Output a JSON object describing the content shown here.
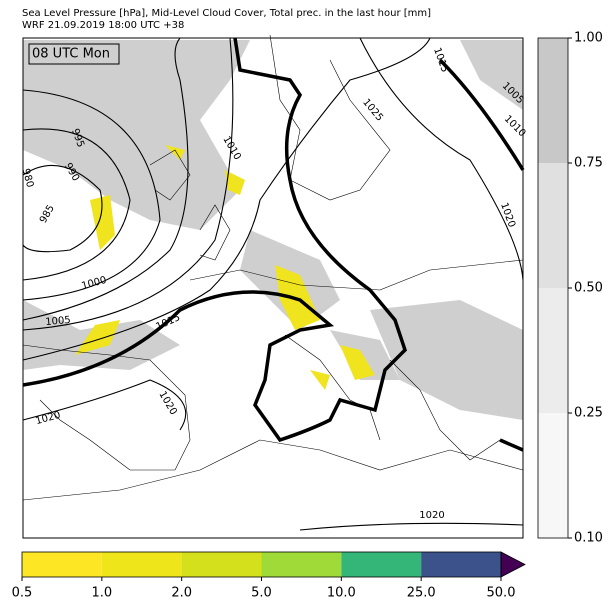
{
  "header": {
    "title": "Sea Level Pressure [hPa], Mid-Level Cloud Cover, Total prec. in the last hour [mm]",
    "subtitle": "WRF 21.09.2019 18:00 UTC +38"
  },
  "map": {
    "time_label": "08 UTC Mon",
    "contour_labels": [
      995,
      990,
      980,
      985,
      1000,
      1005,
      1015,
      1010,
      1015,
      1025,
      1005,
      1010,
      1020,
      1020,
      1020,
      1020
    ]
  },
  "cloud_colorbar": {
    "ticks": [
      {
        "value": 0.1,
        "label": "0.10"
      },
      {
        "value": 0.25,
        "label": "0.25"
      },
      {
        "value": 0.5,
        "label": "0.50"
      },
      {
        "value": 0.75,
        "label": "0.75"
      },
      {
        "value": 1.0,
        "label": "1.00"
      }
    ],
    "colors": [
      "#f7f7f7",
      "#ececec",
      "#e0e0e0",
      "#c8c8c8"
    ]
  },
  "precip_colorbar": {
    "ticks": [
      {
        "value": 0.5,
        "label": "0.5"
      },
      {
        "value": 1,
        "label": "1.0"
      },
      {
        "value": 2,
        "label": "2.0"
      },
      {
        "value": 5,
        "label": "5.0"
      },
      {
        "value": 10,
        "label": "10.0"
      },
      {
        "value": 25,
        "label": "25.0"
      },
      {
        "value": 50,
        "label": "50.0"
      }
    ],
    "colors": [
      "#fde725",
      "#eee51b",
      "#d5e01d",
      "#a0da39",
      "#34b679",
      "#3b528b"
    ],
    "over_color": "#440154"
  }
}
